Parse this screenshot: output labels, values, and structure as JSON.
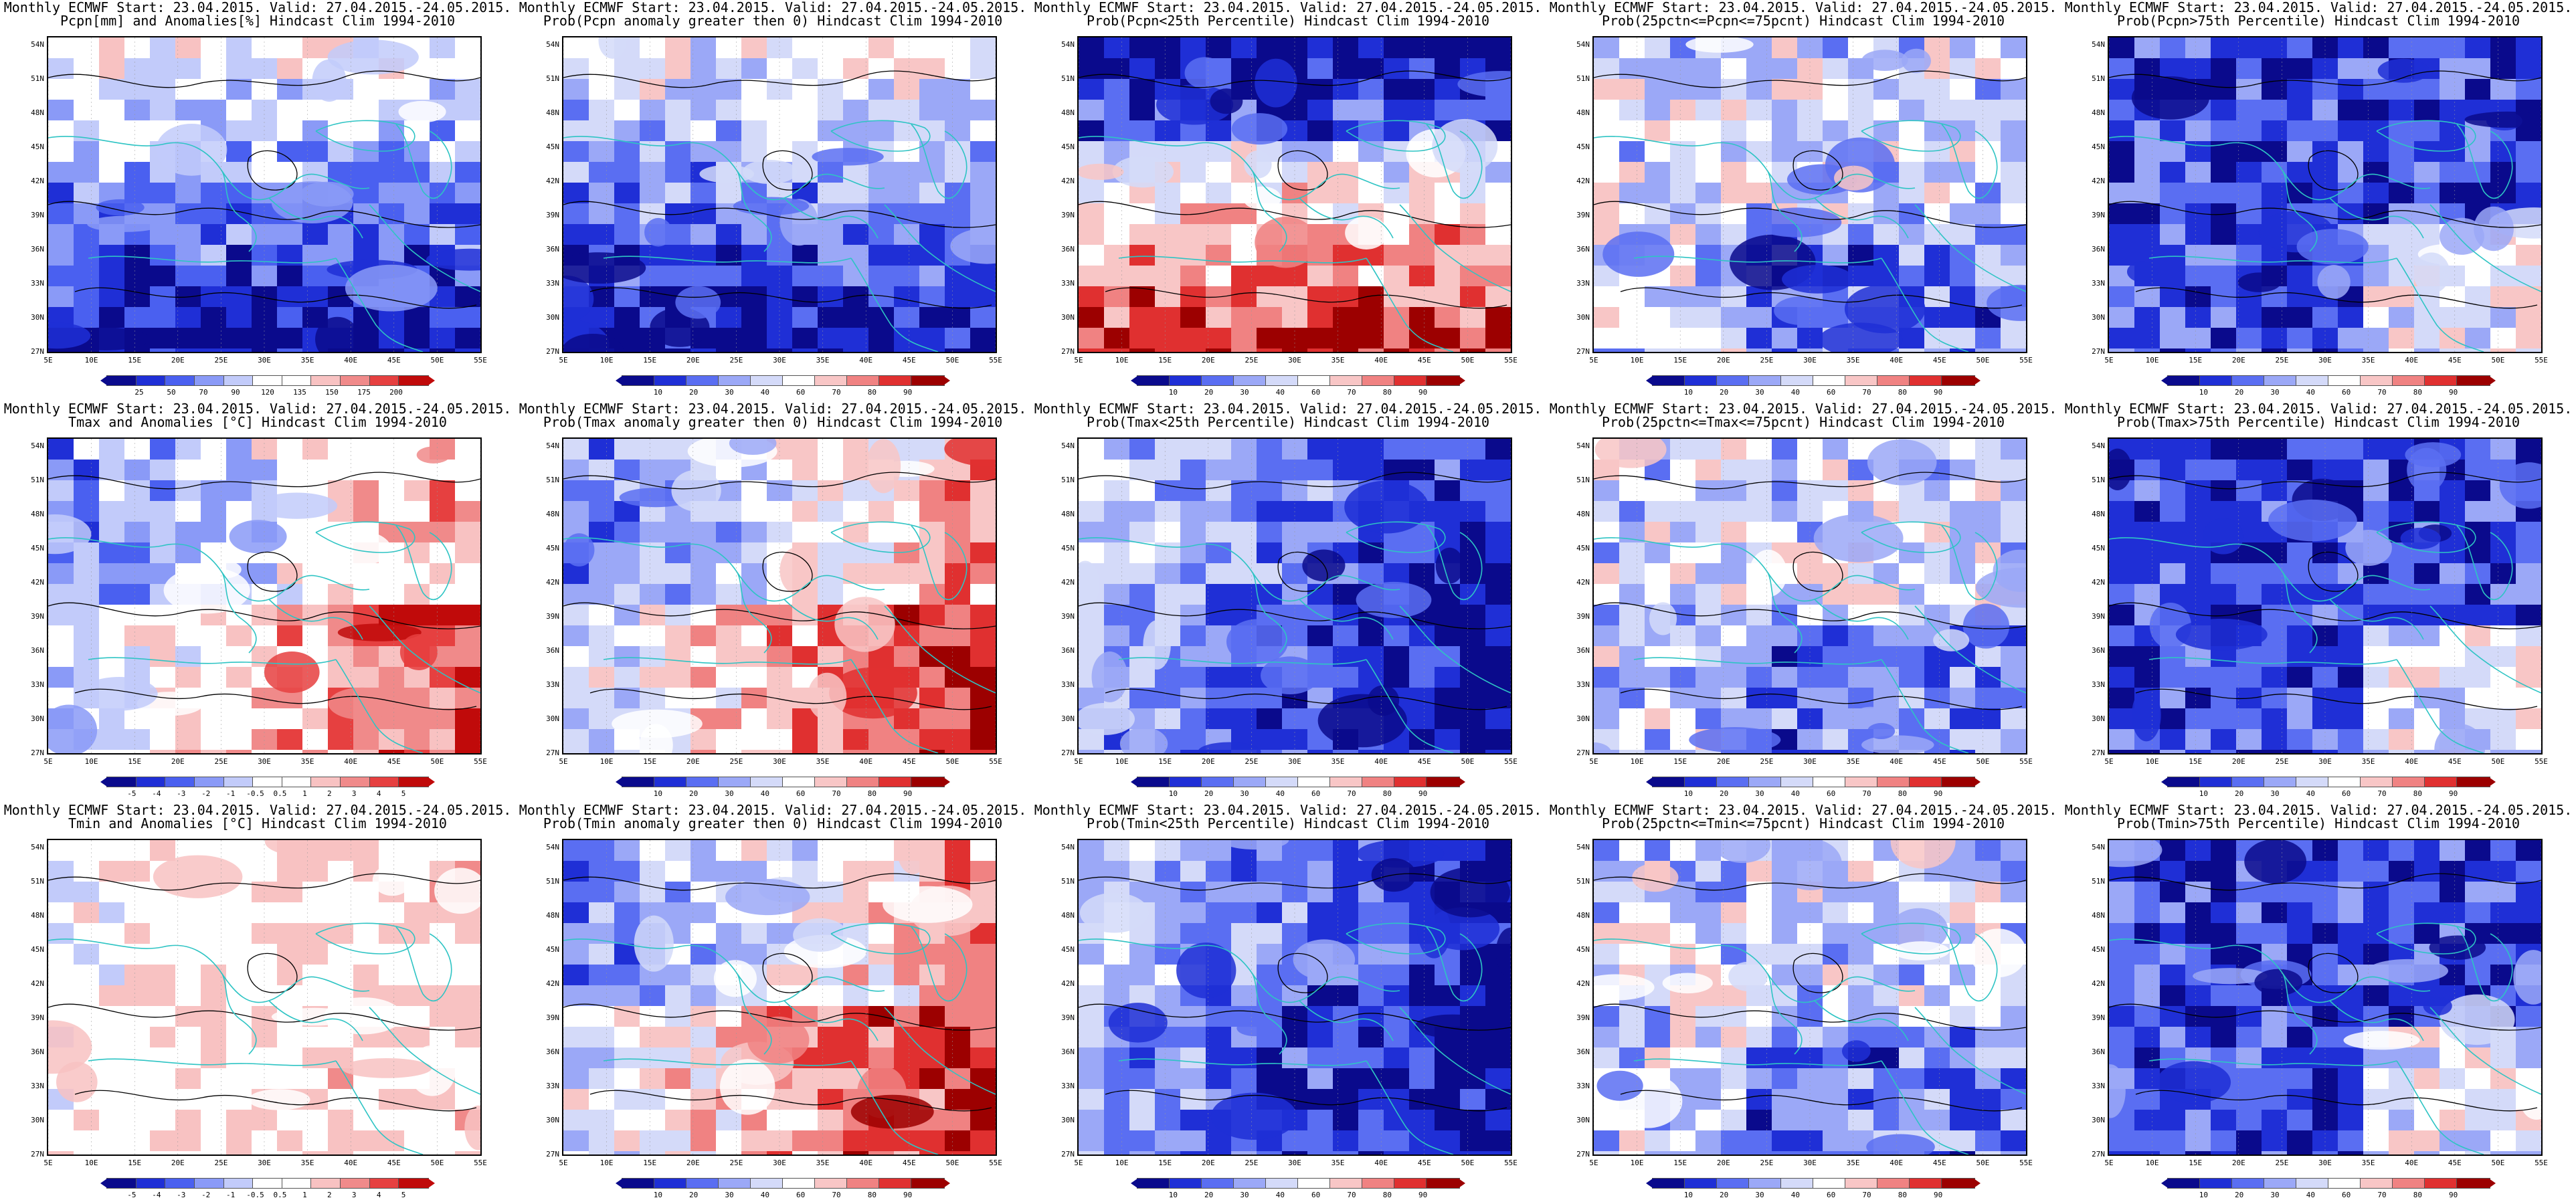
{
  "longitudes": [
    "5E",
    "10E",
    "15E",
    "20E",
    "25E",
    "30E",
    "35E",
    "40E",
    "45E",
    "50E",
    "55E"
  ],
  "latitudes": [
    "54N",
    "51N",
    "48N",
    "45N",
    "42N",
    "39N",
    "36N",
    "33N",
    "30N",
    "27N"
  ],
  "colors": {
    "anomaly_scale": [
      "#0a0a8c",
      "#1f2fd6",
      "#4a60f0",
      "#8a9af7",
      "#c2cbfa",
      "#ffffff",
      "#ffffff",
      "#f8c2c2",
      "#f08a8a",
      "#e64040",
      "#c00a0a"
    ],
    "prob_scale": [
      "#0a0a8c",
      "#1f2fd6",
      "#5a6ef2",
      "#9ba8f7",
      "#d4daf9",
      "#ffffff",
      "#f8c6c6",
      "#f08282",
      "#e03030",
      "#9c0000"
    ],
    "coast": "#2ec4c4",
    "contour": "#000000"
  },
  "panels": [
    {
      "name": "pcpn-anomaly",
      "title1": "Monthly ECMWF Start: 23.04.2015. Valid: 27.04.2015.-24.05.2015.",
      "title2": "Pcpn[mm] and Anomalies[%] Hindcast Clim 1994-2010",
      "scale": "anom",
      "bias": "blue-south",
      "cbar_labels": [
        "25",
        "50",
        "70",
        "90",
        "120",
        "135",
        "150",
        "175",
        "200"
      ]
    },
    {
      "name": "pcpn-prob-gt0",
      "title1": "Monthly ECMWF Start: 23.04.2015. Valid: 27.04.2015.-24.05.2015.",
      "title2": "Prob(Pcpn anomaly greater then 0) Hindcast Clim 1994-2010",
      "scale": "prob",
      "bias": "blue-south",
      "cbar_labels": [
        "10",
        "20",
        "30",
        "40",
        "60",
        "70",
        "80",
        "90"
      ]
    },
    {
      "name": "pcpn-prob-lt25",
      "title1": "Monthly ECMWF Start: 23.04.2015. Valid: 27.04.2015.-24.05.2015.",
      "title2": "Prob(Pcpn<25th Percentile) Hindcast Clim 1994-2010",
      "scale": "prob",
      "bias": "red-south",
      "cbar_labels": [
        "10",
        "20",
        "30",
        "40",
        "60",
        "70",
        "80",
        "90"
      ]
    },
    {
      "name": "pcpn-prob-mid",
      "title1": "Monthly ECMWF Start: 23.04.2015. Valid: 27.04.2015.-24.05.2015.",
      "title2": "Prob(25pctn<=Pcpn<=75pcnt) Hindcast Clim 1994-2010",
      "scale": "prob",
      "bias": "mixed",
      "cbar_labels": [
        "10",
        "20",
        "30",
        "40",
        "60",
        "70",
        "80",
        "90"
      ]
    },
    {
      "name": "pcpn-prob-gt75",
      "title1": "Monthly ECMWF Start: 23.04.2015. Valid: 27.04.2015.-24.05.2015.",
      "title2": "Prob(Pcpn>75th Percentile) Hindcast Clim 1994-2010",
      "scale": "prob",
      "bias": "blue",
      "cbar_labels": [
        "10",
        "20",
        "30",
        "40",
        "60",
        "70",
        "80",
        "90"
      ]
    },
    {
      "name": "tmax-anomaly",
      "title1": "Monthly ECMWF Start: 23.04.2015. Valid: 27.04.2015.-24.05.2015.",
      "title2": "Tmax and Anomalies [°C] Hindcast Clim 1994-2010",
      "scale": "anom",
      "bias": "red-east",
      "cbar_labels": [
        "-5",
        "-4",
        "-3",
        "-2",
        "-1",
        "-0.5",
        "0.5",
        "1",
        "2",
        "3",
        "4",
        "5"
      ]
    },
    {
      "name": "tmax-prob-gt0",
      "title1": "Monthly ECMWF Start: 23.04.2015. Valid: 27.04.2015.-24.05.2015.",
      "title2": "Prob(Tmax anomaly greater then 0) Hindcast Clim 1994-2010",
      "scale": "prob",
      "bias": "red-east",
      "cbar_labels": [
        "10",
        "20",
        "30",
        "40",
        "60",
        "70",
        "80",
        "90"
      ]
    },
    {
      "name": "tmax-prob-lt25",
      "title1": "Monthly ECMWF Start: 23.04.2015. Valid: 27.04.2015.-24.05.2015.",
      "title2": "Prob(Tmax<25th Percentile) Hindcast Clim 1994-2010",
      "scale": "prob",
      "bias": "blue-east",
      "cbar_labels": [
        "10",
        "20",
        "30",
        "40",
        "60",
        "70",
        "80",
        "90"
      ]
    },
    {
      "name": "tmax-prob-mid",
      "title1": "Monthly ECMWF Start: 23.04.2015. Valid: 27.04.2015.-24.05.2015.",
      "title2": "Prob(25pctn<=Tmax<=75pcnt) Hindcast Clim 1994-2010",
      "scale": "prob",
      "bias": "mixed",
      "cbar_labels": [
        "10",
        "20",
        "30",
        "40",
        "60",
        "70",
        "80",
        "90"
      ]
    },
    {
      "name": "tmax-prob-gt75",
      "title1": "Monthly ECMWF Start: 23.04.2015. Valid: 27.04.2015.-24.05.2015.",
      "title2": "Prob(Tmax>75th Percentile) Hindcast Clim 1994-2010",
      "scale": "prob",
      "bias": "blue",
      "cbar_labels": [
        "10",
        "20",
        "30",
        "40",
        "60",
        "70",
        "80",
        "90"
      ]
    },
    {
      "name": "tmin-anomaly",
      "title1": "Monthly ECMWF Start: 23.04.2015. Valid: 27.04.2015.-24.05.2015.",
      "title2": "Tmin and Anomalies [°C] Hindcast Clim 1994-2010",
      "scale": "anom",
      "bias": "pale-red",
      "cbar_labels": [
        "-5",
        "-4",
        "-3",
        "-2",
        "-1",
        "-0.5",
        "0.5",
        "1",
        "2",
        "3",
        "4",
        "5"
      ]
    },
    {
      "name": "tmin-prob-gt0",
      "title1": "Monthly ECMWF Start: 23.04.2015. Valid: 27.04.2015.-24.05.2015.",
      "title2": "Prob(Tmin anomaly greater then 0) Hindcast Clim 1994-2010",
      "scale": "prob",
      "bias": "red-east",
      "cbar_labels": [
        "10",
        "20",
        "30",
        "40",
        "60",
        "70",
        "80",
        "90"
      ]
    },
    {
      "name": "tmin-prob-lt25",
      "title1": "Monthly ECMWF Start: 23.04.2015. Valid: 27.04.2015.-24.05.2015.",
      "title2": "Prob(Tmin<25th Percentile) Hindcast Clim 1994-2010",
      "scale": "prob",
      "bias": "blue-east",
      "cbar_labels": [
        "10",
        "20",
        "30",
        "40",
        "60",
        "70",
        "80",
        "90"
      ]
    },
    {
      "name": "tmin-prob-mid",
      "title1": "Monthly ECMWF Start: 23.04.2015. Valid: 27.04.2015.-24.05.2015.",
      "title2": "Prob(25pctn<=Tmin<=75pcnt) Hindcast Clim 1994-2010",
      "scale": "prob",
      "bias": "mixed",
      "cbar_labels": [
        "10",
        "20",
        "30",
        "40",
        "60",
        "70",
        "80",
        "90"
      ]
    },
    {
      "name": "tmin-prob-gt75",
      "title1": "Monthly ECMWF Start: 23.04.2015. Valid: 27.04.2015.-24.05.2015.",
      "title2": "Prob(Tmin>75th Percentile) Hindcast Clim 1994-2010",
      "scale": "prob",
      "bias": "blue",
      "cbar_labels": [
        "10",
        "20",
        "30",
        "40",
        "60",
        "70",
        "80",
        "90"
      ]
    }
  ]
}
